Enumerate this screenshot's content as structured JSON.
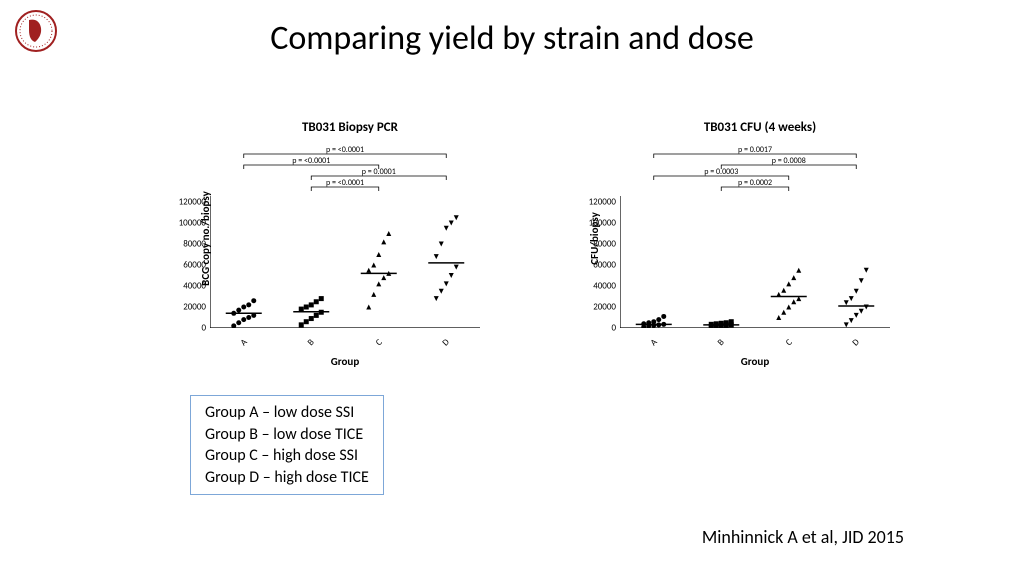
{
  "title": "Comparing yield by strain and dose",
  "citation": "Minhinnick A et al, JID 2015",
  "legend": {
    "lines": [
      "Group A – low dose SSI",
      "Group B – low dose TICE",
      "Group C – high dose SSI",
      "Group D – high dose TICE"
    ],
    "border_color": "#7da7d8"
  },
  "charts": [
    {
      "title": "TB031 Biopsy PCR",
      "type": "scatter-column",
      "xlabel": "Group",
      "ylabel": "BCG copy no./biopsy",
      "ylim": [
        0,
        120000
      ],
      "ytick_step": 20000,
      "categories": [
        "A",
        "B",
        "C",
        "D"
      ],
      "markers": [
        "circle",
        "square",
        "triangle-up",
        "triangle-down"
      ],
      "marker_color": "#000000",
      "median_lines": [
        14000,
        15500,
        52000,
        62000
      ],
      "points": {
        "A": [
          2000,
          5000,
          8000,
          10000,
          12000,
          14000,
          17000,
          20000,
          22000,
          26000
        ],
        "B": [
          3000,
          6000,
          9000,
          12000,
          15000,
          18000,
          20000,
          22000,
          25000,
          28000
        ],
        "C": [
          20000,
          32000,
          42000,
          48000,
          52000,
          55000,
          60000,
          70000,
          82000,
          90000
        ],
        "D": [
          28000,
          35000,
          42000,
          50000,
          58000,
          68000,
          80000,
          95000,
          100000,
          105000
        ]
      },
      "brackets": [
        {
          "from": "A",
          "to": "C",
          "label": "p = <0.0001",
          "level": 3
        },
        {
          "from": "A",
          "to": "D",
          "label": "p = <0.0001",
          "level": 4
        },
        {
          "from": "B",
          "to": "C",
          "label": "p = <0.0001",
          "level": 1
        },
        {
          "from": "B",
          "to": "D",
          "label": "p = 0.0001",
          "level": 2
        }
      ],
      "axis_color": "#000000",
      "background_color": "#ffffff",
      "title_fontsize": 13,
      "label_fontsize": 11,
      "tick_fontsize": 9
    },
    {
      "title": "TB031 CFU (4 weeks)",
      "type": "scatter-column",
      "xlabel": "Group",
      "ylabel": "CFU/biopsy",
      "ylim": [
        0,
        120000
      ],
      "ytick_step": 20000,
      "categories": [
        "A",
        "B",
        "C",
        "D"
      ],
      "markers": [
        "circle",
        "square",
        "triangle-up",
        "triangle-down"
      ],
      "marker_color": "#000000",
      "median_lines": [
        3500,
        3000,
        30000,
        21000
      ],
      "points": {
        "A": [
          1000,
          2000,
          2500,
          3000,
          3500,
          4000,
          5000,
          6000,
          8000,
          11000
        ],
        "B": [
          1200,
          1800,
          2200,
          2800,
          3000,
          3500,
          4000,
          4500,
          5000,
          6000
        ],
        "C": [
          10000,
          15000,
          20000,
          25000,
          28000,
          32000,
          36000,
          42000,
          48000,
          55000
        ],
        "D": [
          3000,
          7000,
          12000,
          16000,
          20000,
          24000,
          28000,
          35000,
          45000,
          55000
        ]
      },
      "brackets": [
        {
          "from": "A",
          "to": "C",
          "label": "p = 0.0003",
          "level": 2
        },
        {
          "from": "A",
          "to": "D",
          "label": "p = 0.0017",
          "level": 4
        },
        {
          "from": "B",
          "to": "C",
          "label": "p = 0.0002",
          "level": 1
        },
        {
          "from": "B",
          "to": "D",
          "label": "p = 0.0008",
          "level": 3
        }
      ],
      "axis_color": "#000000",
      "background_color": "#ffffff",
      "title_fontsize": 13,
      "label_fontsize": 11,
      "tick_fontsize": 9
    }
  ]
}
